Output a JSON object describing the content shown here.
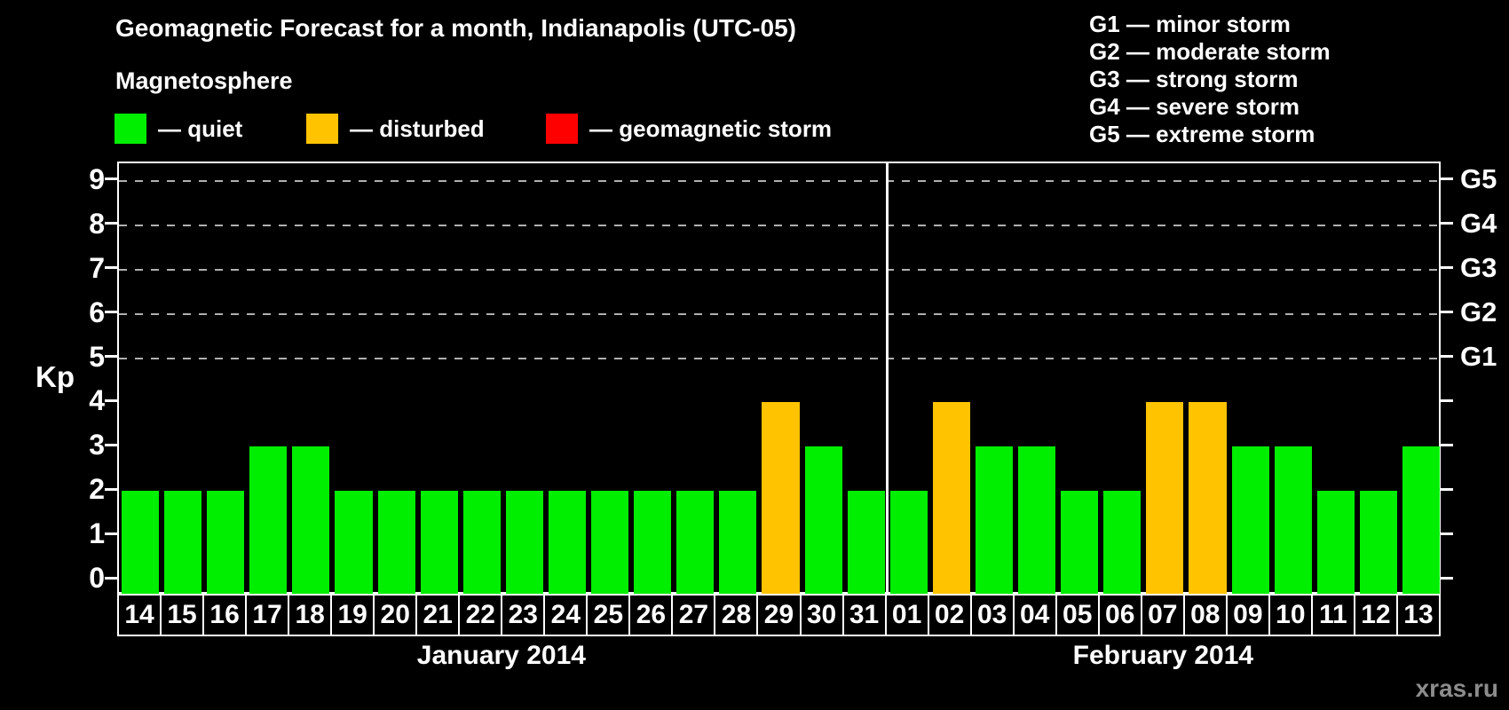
{
  "watermark": "xras.ru",
  "legend": {
    "heading": "Magnetosphere",
    "items": [
      {
        "label": "— quiet",
        "status": "quiet",
        "color": "#00ee00"
      },
      {
        "label": "— disturbed",
        "status": "disturbed",
        "color": "#ffc300"
      },
      {
        "label": "— geomagnetic storm",
        "status": "storm",
        "color": "#ff0000"
      }
    ]
  },
  "g_scale": [
    "G1 — minor storm",
    "G2 — moderate storm",
    "G3 — strong storm",
    "G4 — severe storm",
    "G5 — extreme storm"
  ],
  "chart_data": {
    "type": "bar",
    "title": "Geomagnetic Forecast for a month, Indianapolis (UTC-05)",
    "ylabel": "Kp",
    "ylim": [
      0,
      9
    ],
    "y_ticks": [
      0,
      1,
      2,
      3,
      4,
      5,
      6,
      7,
      8,
      9
    ],
    "gridlines_kp": [
      5,
      6,
      7,
      8,
      9
    ],
    "grid": "dashed horizontal at Kp 5-9 only",
    "legend_position": "top",
    "right_axis": [
      {
        "label": "G5",
        "kp": 9
      },
      {
        "label": "G4",
        "kp": 8
      },
      {
        "label": "G3",
        "kp": 7
      },
      {
        "label": "G2",
        "kp": 6
      },
      {
        "label": "G1",
        "kp": 5
      }
    ],
    "status_colors": {
      "quiet": "#00ee00",
      "disturbed": "#ffc300",
      "storm": "#ff0000"
    },
    "months": [
      {
        "label": "January 2014",
        "bars": [
          {
            "day": "14",
            "kp": 2,
            "status": "quiet"
          },
          {
            "day": "15",
            "kp": 2,
            "status": "quiet"
          },
          {
            "day": "16",
            "kp": 2,
            "status": "quiet"
          },
          {
            "day": "17",
            "kp": 3,
            "status": "quiet"
          },
          {
            "day": "18",
            "kp": 3,
            "status": "quiet"
          },
          {
            "day": "19",
            "kp": 2,
            "status": "quiet"
          },
          {
            "day": "20",
            "kp": 2,
            "status": "quiet"
          },
          {
            "day": "21",
            "kp": 2,
            "status": "quiet"
          },
          {
            "day": "22",
            "kp": 2,
            "status": "quiet"
          },
          {
            "day": "23",
            "kp": 2,
            "status": "quiet"
          },
          {
            "day": "24",
            "kp": 2,
            "status": "quiet"
          },
          {
            "day": "25",
            "kp": 2,
            "status": "quiet"
          },
          {
            "day": "26",
            "kp": 2,
            "status": "quiet"
          },
          {
            "day": "27",
            "kp": 2,
            "status": "quiet"
          },
          {
            "day": "28",
            "kp": 2,
            "status": "quiet"
          },
          {
            "day": "29",
            "kp": 4,
            "status": "disturbed"
          },
          {
            "day": "30",
            "kp": 3,
            "status": "quiet"
          },
          {
            "day": "31",
            "kp": 2,
            "status": "quiet"
          }
        ]
      },
      {
        "label": "February 2014",
        "bars": [
          {
            "day": "01",
            "kp": 2,
            "status": "quiet"
          },
          {
            "day": "02",
            "kp": 4,
            "status": "disturbed"
          },
          {
            "day": "03",
            "kp": 3,
            "status": "quiet"
          },
          {
            "day": "04",
            "kp": 3,
            "status": "quiet"
          },
          {
            "day": "05",
            "kp": 2,
            "status": "quiet"
          },
          {
            "day": "06",
            "kp": 2,
            "status": "quiet"
          },
          {
            "day": "07",
            "kp": 4,
            "status": "disturbed"
          },
          {
            "day": "08",
            "kp": 4,
            "status": "disturbed"
          },
          {
            "day": "09",
            "kp": 3,
            "status": "quiet"
          },
          {
            "day": "10",
            "kp": 3,
            "status": "quiet"
          },
          {
            "day": "11",
            "kp": 2,
            "status": "quiet"
          },
          {
            "day": "12",
            "kp": 2,
            "status": "quiet"
          },
          {
            "day": "13",
            "kp": 3,
            "status": "quiet"
          }
        ]
      }
    ]
  }
}
